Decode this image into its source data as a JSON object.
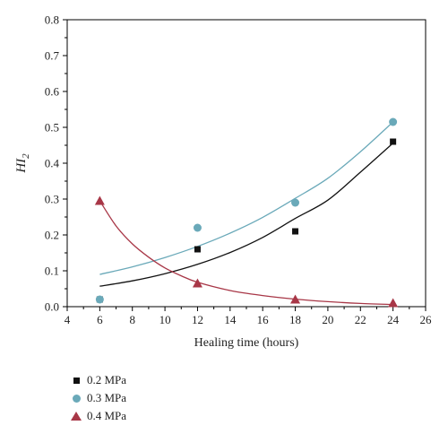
{
  "chart_data": {
    "type": "scatter",
    "xlabel": "Healing time (hours)",
    "ylabel": "HI",
    "ylabel_subscript": "2",
    "xlim": [
      4,
      26
    ],
    "ylim": [
      0.0,
      0.8
    ],
    "x_ticks": [
      "4",
      "6",
      "8",
      "10",
      "12",
      "14",
      "16",
      "18",
      "20",
      "22",
      "24",
      "26"
    ],
    "y_ticks": [
      "0.0",
      "0.1",
      "0.2",
      "0.3",
      "0.4",
      "0.5",
      "0.6",
      "0.7",
      "0.8"
    ],
    "grid": false,
    "legend_position": "bottom-left outside",
    "series": [
      {
        "name": "0.2 MPa",
        "marker": "square",
        "color": "#111111",
        "x": [
          6,
          12,
          18,
          24
        ],
        "y": [
          0.02,
          0.16,
          0.21,
          0.46
        ],
        "fit_curve": [
          [
            6,
            0.057
          ],
          [
            8,
            0.072
          ],
          [
            10,
            0.092
          ],
          [
            12,
            0.118
          ],
          [
            14,
            0.151
          ],
          [
            16,
            0.193
          ],
          [
            18,
            0.246
          ],
          [
            20,
            0.297
          ],
          [
            22,
            0.375
          ],
          [
            24,
            0.456
          ]
        ]
      },
      {
        "name": "0.3 MPa",
        "marker": "circle",
        "color": "#6aa9b9",
        "x": [
          6,
          12,
          18,
          24
        ],
        "y": [
          0.02,
          0.22,
          0.29,
          0.515
        ],
        "fit_curve": [
          [
            6,
            0.09
          ],
          [
            8,
            0.111
          ],
          [
            10,
            0.137
          ],
          [
            12,
            0.168
          ],
          [
            14,
            0.205
          ],
          [
            16,
            0.249
          ],
          [
            18,
            0.302
          ],
          [
            20,
            0.358
          ],
          [
            22,
            0.432
          ],
          [
            24,
            0.515
          ]
        ]
      },
      {
        "name": "0.4 MPa",
        "marker": "triangle",
        "color": "#a83747",
        "x": [
          6,
          12,
          18,
          24
        ],
        "y": [
          0.295,
          0.065,
          0.02,
          0.01
        ],
        "fit_curve": [
          [
            6,
            0.295
          ],
          [
            7,
            0.225
          ],
          [
            8,
            0.175
          ],
          [
            9,
            0.138
          ],
          [
            10,
            0.108
          ],
          [
            11,
            0.086
          ],
          [
            12,
            0.068
          ],
          [
            14,
            0.045
          ],
          [
            16,
            0.031
          ],
          [
            18,
            0.021
          ],
          [
            20,
            0.014
          ],
          [
            22,
            0.009
          ],
          [
            24,
            0.006
          ]
        ]
      }
    ]
  }
}
